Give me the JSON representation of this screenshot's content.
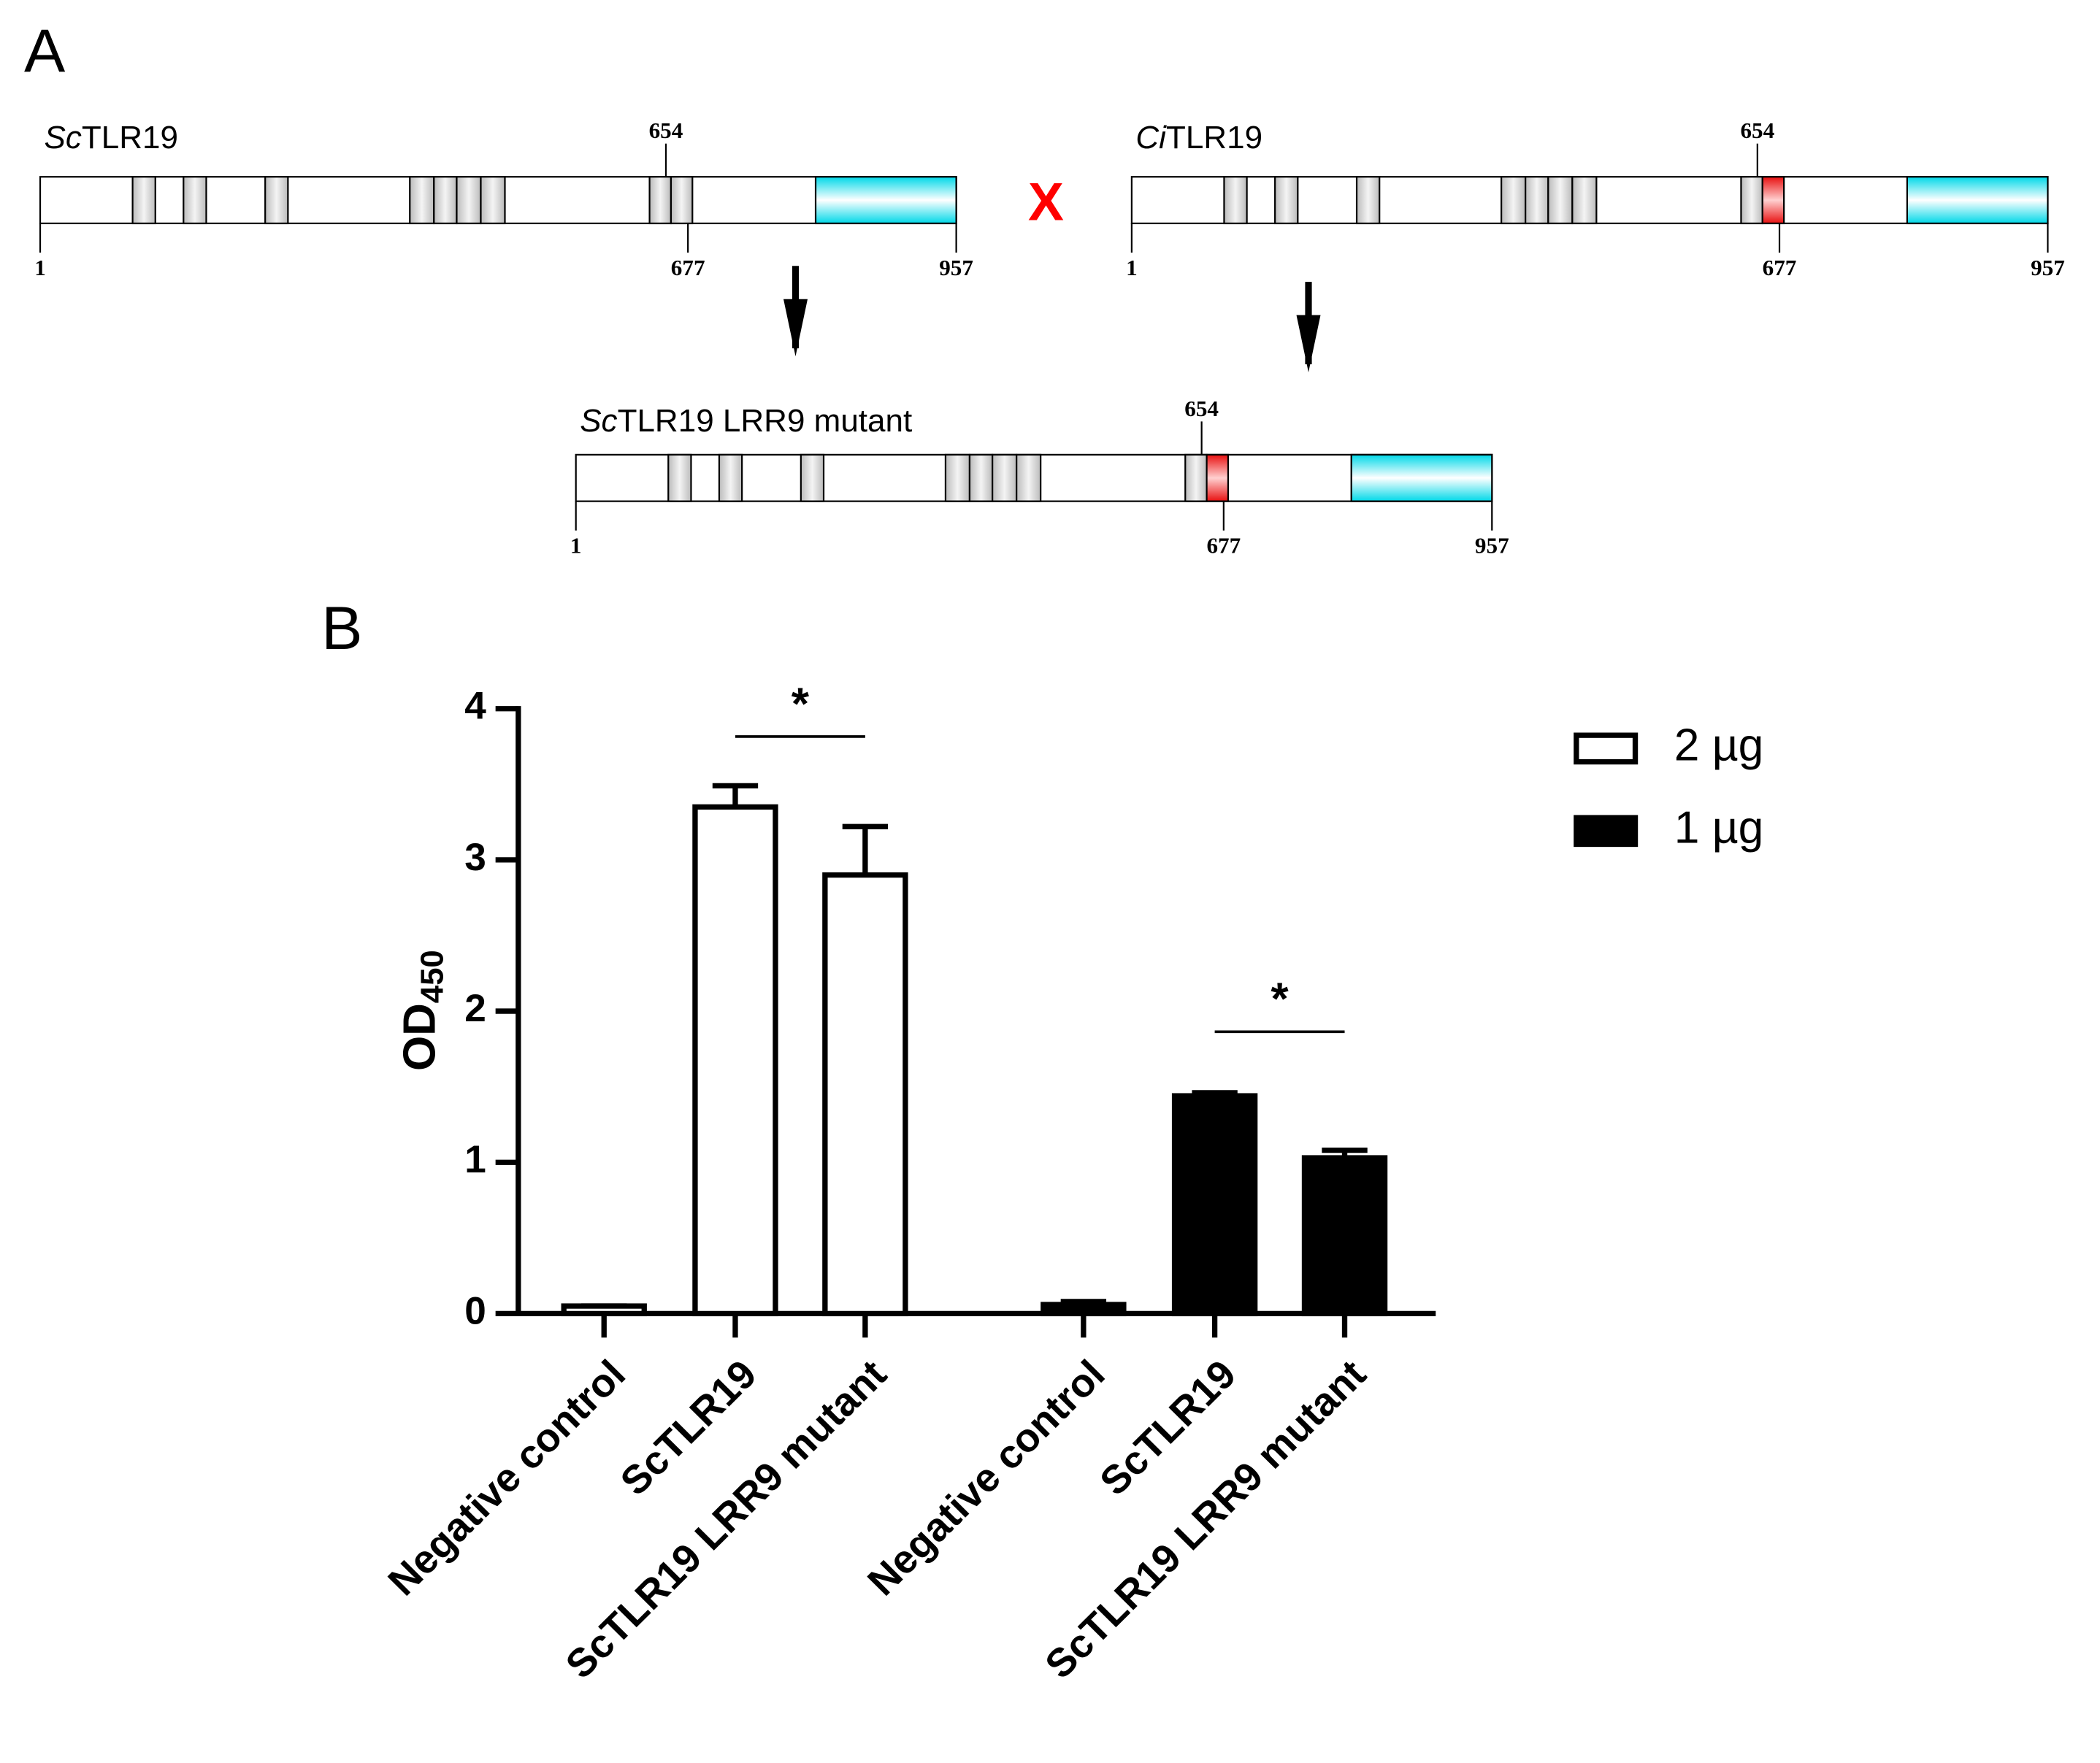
{
  "diagram": {
    "panel_a": "A",
    "cross": "X",
    "proteins": [
      {
        "italic": "Sc",
        "name": "TLR19",
        "top_tick": 654,
        "bottom_ticks": [
          1,
          677,
          957
        ]
      },
      {
        "italic": "Ci",
        "name": "TLR19",
        "top_tick": 654,
        "bottom_ticks": [
          1,
          677,
          957
        ]
      },
      {
        "italic": "Sc",
        "name": "TLR19 LRR9 mutant",
        "top_tick": 654,
        "bottom_ticks": [
          1,
          677,
          957
        ]
      }
    ]
  },
  "chart_data": {
    "type": "bar",
    "panel": "B",
    "ylabel": "OD",
    "ylabel_sub": "450",
    "categories": [
      "Negative control",
      "ScTLR19",
      "ScTLR19 LRR9 mutant"
    ],
    "series": [
      {
        "name": "2 µg",
        "color": "#ffffff",
        "values": [
          0.05,
          3.35,
          2.9
        ],
        "errors": [
          0,
          0.14,
          0.32
        ]
      },
      {
        "name": "1 µg",
        "color": "#000000",
        "values": [
          0.06,
          1.44,
          1.03
        ],
        "errors": [
          0.02,
          0.02,
          0.05
        ]
      }
    ],
    "annotations": [
      "*",
      "*"
    ],
    "ylim": [
      0,
      4
    ],
    "yticks": [
      0,
      1,
      2,
      3,
      4
    ]
  }
}
